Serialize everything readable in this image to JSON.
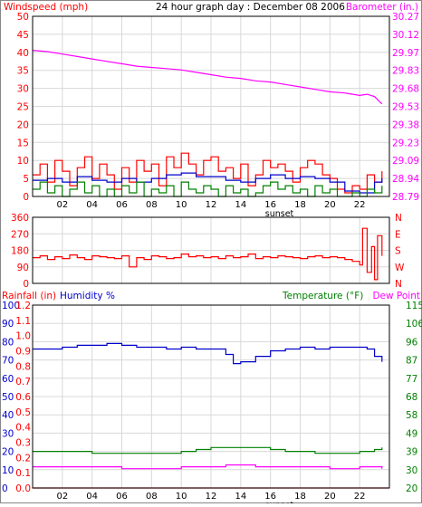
{
  "chart_data": [
    {
      "type": "line",
      "title": "24 hour graph day : December 08 2006",
      "left_axis_label": "Windspeed (mph)",
      "right_axis_label": "Barometer (in.)",
      "x_tick_labels": [
        "02",
        "04",
        "06",
        "08",
        "10",
        "12",
        "14",
        "16",
        "18",
        "20",
        "22"
      ],
      "x_annotation": "sunset",
      "x_range_hours": [
        0,
        24
      ],
      "left_ticks": [
        "0",
        "5",
        "10",
        "15",
        "20",
        "25",
        "30",
        "35",
        "40",
        "45",
        "50"
      ],
      "left_range": [
        0,
        50
      ],
      "right_ticks": [
        "28.79",
        "28.94",
        "29.09",
        "29.23",
        "29.38",
        "29.53",
        "29.68",
        "29.83",
        "29.97",
        "30.12",
        "30.27"
      ],
      "right_range": [
        28.79,
        30.27
      ],
      "grid": true,
      "series": [
        {
          "color": "#ff00ff",
          "axis": "right",
          "x": [
            0,
            1,
            2,
            3,
            4,
            5,
            6,
            7,
            8,
            9,
            10,
            11,
            12,
            13,
            14,
            15,
            16,
            17,
            18,
            19,
            20,
            21,
            22,
            22.5,
            23,
            23.5
          ],
          "y": [
            29.99,
            29.98,
            29.96,
            29.94,
            29.92,
            29.9,
            29.88,
            29.86,
            29.85,
            29.84,
            29.83,
            29.81,
            29.79,
            29.77,
            29.76,
            29.74,
            29.73,
            29.71,
            29.69,
            29.67,
            29.65,
            29.64,
            29.62,
            29.63,
            29.61,
            29.55
          ]
        },
        {
          "color": "#ff0000",
          "axis": "left",
          "x": [
            0,
            0.5,
            1,
            1.5,
            2,
            2.5,
            3,
            3.5,
            4,
            4.5,
            5,
            5.5,
            6,
            6.5,
            7,
            7.5,
            8,
            8.5,
            9,
            9.5,
            10,
            10.5,
            11,
            11.5,
            12,
            12.5,
            13,
            13.5,
            14,
            14.5,
            15,
            15.5,
            16,
            16.5,
            17,
            17.5,
            18,
            18.5,
            19,
            19.5,
            20,
            20.5,
            21,
            21.5,
            22,
            22.5,
            23,
            23.5
          ],
          "y": [
            6,
            9,
            4,
            10,
            7,
            3,
            8,
            11,
            5,
            9,
            6,
            2,
            8,
            4,
            10,
            7,
            9,
            3,
            11,
            8,
            12,
            9,
            6,
            10,
            11,
            7,
            8,
            5,
            9,
            3,
            6,
            10,
            8,
            9,
            7,
            4,
            8,
            10,
            9,
            6,
            5,
            2,
            1,
            3,
            2,
            6,
            4,
            7
          ]
        },
        {
          "color": "#0000cc",
          "axis": "left",
          "x": [
            0,
            1,
            2,
            3,
            4,
            5,
            6,
            7,
            8,
            9,
            10,
            11,
            12,
            13,
            14,
            15,
            16,
            17,
            18,
            19,
            20,
            21,
            22,
            23,
            23.5
          ],
          "y": [
            4.5,
            5,
            4,
            5.5,
            4.5,
            4,
            5,
            4,
            5,
            6,
            6.5,
            5.5,
            5.5,
            4.5,
            4,
            5,
            6,
            5,
            5.5,
            5,
            4,
            1.5,
            1,
            4,
            5
          ]
        },
        {
          "color": "#008000",
          "axis": "left",
          "x": [
            0,
            0.5,
            1,
            1.5,
            2,
            2.5,
            3,
            3.5,
            4,
            4.5,
            5,
            5.5,
            6,
            6.5,
            7,
            7.5,
            8,
            8.5,
            9,
            9.5,
            10,
            10.5,
            11,
            11.5,
            12,
            12.5,
            13,
            13.5,
            14,
            14.5,
            15,
            15.5,
            16,
            16.5,
            17,
            17.5,
            18,
            18.5,
            19,
            19.5,
            20,
            20.5,
            21,
            21.5,
            22,
            22.5,
            23,
            23.5
          ],
          "y": [
            2,
            4,
            1,
            3,
            0,
            2,
            4,
            1,
            3,
            0,
            2,
            0,
            3,
            1,
            4,
            0,
            2,
            1,
            3,
            0,
            4,
            2,
            1,
            3,
            2,
            0,
            3,
            1,
            2,
            0,
            1,
            3,
            4,
            2,
            3,
            1,
            2,
            0,
            3,
            1,
            2,
            0,
            0,
            1,
            0,
            2,
            1,
            3
          ]
        }
      ]
    },
    {
      "type": "line",
      "left_ticks": [
        "0",
        "90",
        "180",
        "270",
        "360"
      ],
      "left_range": [
        0,
        360
      ],
      "right_ticks": [
        "N",
        "W",
        "S",
        "E",
        "N"
      ],
      "x_range_hours": [
        0,
        24
      ],
      "grid": true,
      "series": [
        {
          "color": "#ff0000",
          "x": [
            0,
            0.5,
            1,
            1.5,
            2,
            2.5,
            3,
            3.5,
            4,
            4.5,
            5,
            5.5,
            6,
            6.5,
            7,
            7.5,
            8,
            8.5,
            9,
            9.5,
            10,
            10.5,
            11,
            11.5,
            12,
            12.5,
            13,
            13.5,
            14,
            14.5,
            15,
            15.5,
            16,
            16.5,
            17,
            17.5,
            18,
            18.5,
            19,
            19.5,
            20,
            20.5,
            21,
            21.5,
            22,
            22.2,
            22.5,
            22.8,
            23,
            23.2,
            23.5
          ],
          "y": [
            140,
            150,
            130,
            145,
            135,
            155,
            140,
            130,
            150,
            145,
            140,
            135,
            150,
            90,
            140,
            130,
            150,
            145,
            135,
            140,
            160,
            145,
            150,
            140,
            145,
            135,
            150,
            140,
            145,
            160,
            135,
            145,
            140,
            150,
            145,
            140,
            135,
            145,
            150,
            140,
            145,
            140,
            130,
            120,
            100,
            300,
            60,
            200,
            20,
            260,
            150
          ]
        }
      ]
    },
    {
      "type": "line",
      "left_axis_label_1": "Rainfall (in)",
      "left_axis_label_2": "Humidity %",
      "right_axis_label_1": "Temperature  (°F)",
      "right_axis_label_2": "Dew Point",
      "x_tick_labels": [
        "02",
        "04",
        "06",
        "08",
        "10",
        "12",
        "14",
        "16",
        "18",
        "20",
        "22"
      ],
      "x_annotation": "sunset",
      "x_range_hours": [
        0,
        24
      ],
      "humidity_ticks": [
        "0",
        "10",
        "20",
        "30",
        "40",
        "50",
        "60",
        "70",
        "80",
        "90",
        "100"
      ],
      "humidity_range": [
        0,
        100
      ],
      "rain_ticks": [
        "0.0",
        "0.1",
        "0.2",
        "0.3",
        "0.4",
        "0.5",
        "0.6",
        "0.7",
        "0.8",
        "0.9",
        "1.0",
        "1.1",
        "1.2"
      ],
      "rain_range": [
        0,
        1.2
      ],
      "temp_ticks": [
        "20",
        "30",
        "39",
        "49",
        "58",
        "68",
        "77",
        "87",
        "96",
        "106",
        "115"
      ],
      "temp_range": [
        20,
        115
      ],
      "grid": true,
      "series": [
        {
          "color": "#0000cc",
          "axis": "humidity",
          "x": [
            0,
            1,
            2,
            3,
            4,
            5,
            6,
            7,
            8,
            9,
            10,
            11,
            12,
            13,
            13.5,
            14,
            15,
            16,
            17,
            18,
            19,
            20,
            21,
            22,
            22.5,
            23,
            23.5
          ],
          "y": [
            76,
            76,
            77,
            78,
            78,
            79,
            78,
            77,
            77,
            76,
            77,
            76,
            76,
            73,
            68,
            69,
            72,
            75,
            76,
            77,
            76,
            77,
            77,
            77,
            76,
            72,
            69
          ]
        },
        {
          "color": "#008000",
          "axis": "temp",
          "x": [
            0,
            1,
            2,
            3,
            4,
            5,
            6,
            7,
            8,
            9,
            10,
            11,
            12,
            13,
            14,
            15,
            16,
            17,
            18,
            19,
            20,
            21,
            22,
            23,
            23.5
          ],
          "y": [
            39,
            39,
            39,
            39,
            38,
            38,
            38,
            38,
            38,
            38,
            39,
            40,
            41,
            41,
            41,
            41,
            40,
            39,
            39,
            38,
            38,
            38,
            39,
            40,
            41
          ]
        },
        {
          "color": "#ff00ff",
          "axis": "temp",
          "x": [
            0,
            2,
            4,
            6,
            8,
            10,
            12,
            13,
            14,
            15,
            16,
            18,
            20,
            21,
            22,
            23,
            23.5
          ],
          "y": [
            31,
            31,
            31,
            30,
            30,
            31,
            31,
            32,
            32,
            31,
            31,
            31,
            30,
            30,
            31,
            31,
            30
          ]
        },
        {
          "color": "#ff0000",
          "axis": "rain",
          "x": [
            0,
            24
          ],
          "y": [
            0,
            0
          ]
        }
      ]
    }
  ],
  "colors": {
    "windspeed_label": "#ff0000",
    "barometer_label": "#ff00ff",
    "title": "#000000",
    "rainfall_label": "#ff0000",
    "humidity_label": "#0000cc",
    "temperature_label": "#008000",
    "dewpoint_label": "#ff00ff",
    "grid": "#d8d8d8"
  }
}
